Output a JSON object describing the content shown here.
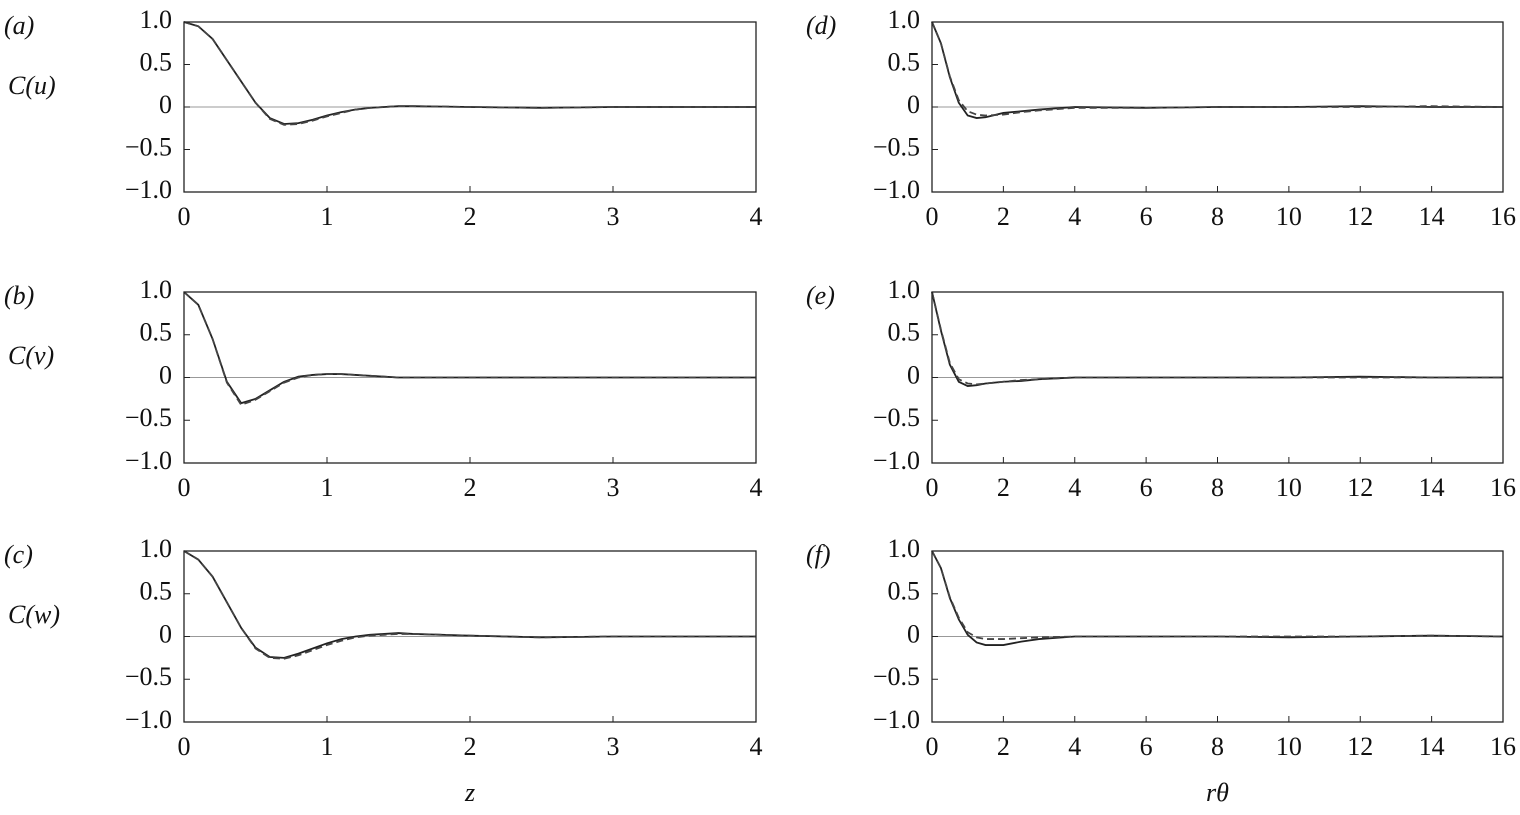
{
  "chart_data": [
    {
      "type": "line",
      "panel_label": "(a)",
      "ylabel": "C(u)",
      "x": [
        0,
        0.1,
        0.2,
        0.3,
        0.4,
        0.5,
        0.6,
        0.7,
        0.8,
        0.9,
        1.0,
        1.1,
        1.2,
        1.3,
        1.4,
        1.5,
        1.6,
        2,
        2.5,
        3,
        3.5,
        4
      ],
      "series": [
        {
          "color": "#222222",
          "dash": false,
          "values": [
            1,
            0.95,
            0.8,
            0.55,
            0.3,
            0.05,
            -0.13,
            -0.2,
            -0.19,
            -0.15,
            -0.1,
            -0.06,
            -0.03,
            -0.01,
            0.0,
            0.01,
            0.01,
            0.0,
            -0.01,
            0.0,
            0.0,
            0.0
          ]
        },
        {
          "color": "#444444",
          "dash": true,
          "values": [
            1,
            0.95,
            0.8,
            0.55,
            0.3,
            0.05,
            -0.14,
            -0.21,
            -0.2,
            -0.16,
            -0.11,
            -0.07,
            -0.03,
            -0.01,
            0.0,
            0.01,
            0.01,
            0.0,
            -0.01,
            0.0,
            0.0,
            0.0
          ]
        }
      ],
      "xlim": [
        0,
        4
      ],
      "ylim": [
        -1,
        1
      ],
      "xticks": [
        0,
        1,
        2,
        3,
        4
      ],
      "yticks": [
        {
          "value": 1,
          "label": "1.0"
        },
        0.5,
        0,
        {
          "value": -0.5,
          "label": "−0.5"
        },
        {
          "value": -1,
          "label": "−1.0"
        }
      ],
      "zero_line": true
    },
    {
      "type": "line",
      "panel_label": "(b)",
      "ylabel": "C(v)",
      "x": [
        0,
        0.1,
        0.2,
        0.3,
        0.4,
        0.5,
        0.6,
        0.7,
        0.8,
        0.9,
        1.0,
        1.1,
        1.2,
        1.3,
        1.4,
        1.5,
        1.6,
        2,
        2.5,
        3,
        3.5,
        4
      ],
      "series": [
        {
          "color": "#222222",
          "dash": false,
          "values": [
            1,
            0.85,
            0.45,
            -0.05,
            -0.3,
            -0.25,
            -0.15,
            -0.05,
            0.01,
            0.03,
            0.04,
            0.04,
            0.03,
            0.02,
            0.01,
            0.0,
            0.0,
            0.0,
            0.0,
            0.0,
            0.0,
            0.0
          ]
        },
        {
          "color": "#444444",
          "dash": true,
          "values": [
            1,
            0.85,
            0.45,
            -0.06,
            -0.32,
            -0.26,
            -0.16,
            -0.06,
            0.0,
            0.03,
            0.04,
            0.04,
            0.03,
            0.02,
            0.01,
            0.0,
            0.0,
            0.0,
            0.0,
            0.0,
            0.0,
            0.0
          ]
        }
      ],
      "xlim": [
        0,
        4
      ],
      "ylim": [
        -1,
        1
      ],
      "xticks": [
        0,
        1,
        2,
        3,
        4
      ],
      "yticks": [
        {
          "value": 1,
          "label": "1.0"
        },
        0.5,
        0,
        {
          "value": -0.5,
          "label": "−0.5"
        },
        {
          "value": -1,
          "label": "−1.0"
        }
      ],
      "zero_line": true
    },
    {
      "type": "line",
      "panel_label": "(c)",
      "ylabel": "C(w)",
      "xlabel": "z",
      "x": [
        0,
        0.1,
        0.2,
        0.3,
        0.4,
        0.5,
        0.6,
        0.7,
        0.8,
        0.9,
        1.0,
        1.1,
        1.2,
        1.3,
        1.4,
        1.5,
        1.6,
        2,
        2.5,
        3,
        3.5,
        4
      ],
      "series": [
        {
          "color": "#222222",
          "dash": false,
          "values": [
            1,
            0.9,
            0.7,
            0.4,
            0.1,
            -0.13,
            -0.24,
            -0.25,
            -0.2,
            -0.14,
            -0.08,
            -0.03,
            0.0,
            0.02,
            0.03,
            0.04,
            0.03,
            0.01,
            -0.01,
            0.0,
            0.0,
            0.0
          ]
        },
        {
          "color": "#444444",
          "dash": true,
          "values": [
            1,
            0.9,
            0.7,
            0.4,
            0.1,
            -0.14,
            -0.25,
            -0.26,
            -0.22,
            -0.16,
            -0.1,
            -0.05,
            -0.01,
            0.01,
            0.02,
            0.03,
            0.03,
            0.01,
            -0.01,
            0.0,
            0.0,
            0.0
          ]
        }
      ],
      "xlim": [
        0,
        4
      ],
      "ylim": [
        -1,
        1
      ],
      "xticks": [
        0,
        1,
        2,
        3,
        4
      ],
      "yticks": [
        {
          "value": 1,
          "label": "1.0"
        },
        0.5,
        0,
        {
          "value": -0.5,
          "label": "−0.5"
        },
        {
          "value": -1,
          "label": "−1.0"
        }
      ],
      "zero_line": true
    },
    {
      "type": "line",
      "panel_label": "(d)",
      "x": [
        0,
        0.25,
        0.5,
        0.75,
        1,
        1.25,
        1.5,
        2,
        2.5,
        3,
        4,
        6,
        8,
        10,
        12,
        14,
        16
      ],
      "series": [
        {
          "color": "#222222",
          "dash": false,
          "values": [
            1,
            0.75,
            0.35,
            0.05,
            -0.1,
            -0.13,
            -0.12,
            -0.07,
            -0.05,
            -0.03,
            0.0,
            -0.01,
            0.0,
            0.0,
            0.01,
            0.0,
            0.0
          ]
        },
        {
          "color": "#444444",
          "dash": true,
          "values": [
            1,
            0.75,
            0.36,
            0.08,
            -0.05,
            -0.09,
            -0.1,
            -0.09,
            -0.06,
            -0.04,
            -0.01,
            -0.01,
            0.0,
            0.0,
            0.0,
            0.01,
            0.0
          ]
        }
      ],
      "xlim": [
        0,
        16
      ],
      "ylim": [
        -1,
        1
      ],
      "xticks": [
        0,
        2,
        4,
        6,
        8,
        10,
        12,
        14,
        16
      ],
      "yticks": [
        {
          "value": 1,
          "label": "1.0"
        },
        0.5,
        0,
        {
          "value": -0.5,
          "label": "−0.5"
        },
        {
          "value": -1,
          "label": "−1.0"
        }
      ],
      "zero_line": true
    },
    {
      "type": "line",
      "panel_label": "(e)",
      "x": [
        0,
        0.25,
        0.5,
        0.75,
        1,
        1.25,
        1.5,
        2,
        2.5,
        3,
        4,
        6,
        8,
        10,
        12,
        14,
        16
      ],
      "series": [
        {
          "color": "#222222",
          "dash": false,
          "values": [
            1,
            0.55,
            0.15,
            -0.05,
            -0.1,
            -0.09,
            -0.07,
            -0.05,
            -0.04,
            -0.02,
            0.0,
            0.0,
            0.0,
            0.0,
            0.01,
            0.0,
            0.0
          ]
        },
        {
          "color": "#444444",
          "dash": true,
          "values": [
            1,
            0.56,
            0.17,
            -0.02,
            -0.07,
            -0.08,
            -0.07,
            -0.05,
            -0.03,
            -0.02,
            0.0,
            0.0,
            0.0,
            0.0,
            0.0,
            0.0,
            0.0
          ]
        }
      ],
      "xlim": [
        0,
        16
      ],
      "ylim": [
        -1,
        1
      ],
      "xticks": [
        0,
        2,
        4,
        6,
        8,
        10,
        12,
        14,
        16
      ],
      "yticks": [
        {
          "value": 1,
          "label": "1.0"
        },
        0.5,
        0,
        {
          "value": -0.5,
          "label": "−0.5"
        },
        {
          "value": -1,
          "label": "−1.0"
        }
      ],
      "zero_line": true
    },
    {
      "type": "line",
      "panel_label": "(f)",
      "xlabel": "rθ",
      "x": [
        0,
        0.25,
        0.5,
        0.75,
        1,
        1.25,
        1.5,
        2,
        2.5,
        3,
        4,
        6,
        8,
        10,
        12,
        14,
        16
      ],
      "series": [
        {
          "color": "#222222",
          "dash": false,
          "values": [
            1,
            0.8,
            0.45,
            0.2,
            0.02,
            -0.07,
            -0.1,
            -0.1,
            -0.06,
            -0.03,
            0.0,
            0.0,
            0.0,
            -0.01,
            0.0,
            0.01,
            0.0
          ]
        },
        {
          "color": "#444444",
          "dash": true,
          "values": [
            1,
            0.8,
            0.46,
            0.22,
            0.05,
            -0.01,
            -0.03,
            -0.03,
            -0.02,
            -0.01,
            0.0,
            0.0,
            0.0,
            0.0,
            0.0,
            0.01,
            0.0
          ]
        }
      ],
      "xlim": [
        0,
        16
      ],
      "ylim": [
        -1,
        1
      ],
      "xticks": [
        0,
        2,
        4,
        6,
        8,
        10,
        12,
        14,
        16
      ],
      "yticks": [
        {
          "value": 1,
          "label": "1.0"
        },
        0.5,
        0,
        {
          "value": -0.5,
          "label": "−0.5"
        },
        {
          "value": -1,
          "label": "−1.0"
        }
      ],
      "zero_line": true
    }
  ]
}
